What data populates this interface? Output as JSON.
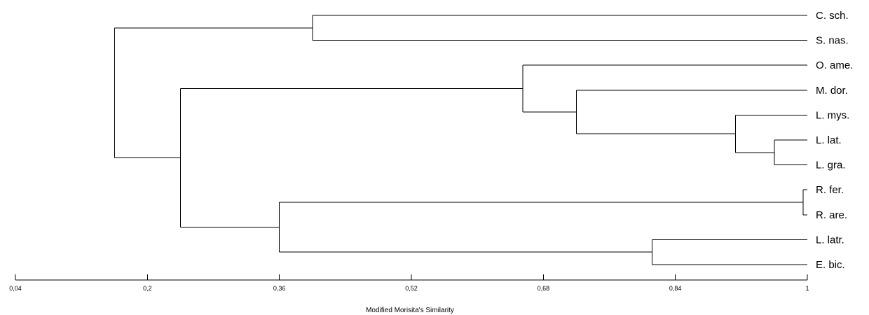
{
  "chart_data": {
    "type": "dendrogram",
    "orientation": "horizontal",
    "xlabel": "Modified Morisita's Similarity",
    "xlim": [
      0.04,
      1
    ],
    "ticks": [
      {
        "value": 0.04,
        "label": "0,04"
      },
      {
        "value": 0.2,
        "label": "0,2"
      },
      {
        "value": 0.36,
        "label": "0,36"
      },
      {
        "value": 0.52,
        "label": "0,52"
      },
      {
        "value": 0.68,
        "label": "0,68"
      },
      {
        "value": 0.84,
        "label": "0,84"
      },
      {
        "value": 1.0,
        "label": "1"
      }
    ],
    "leaves": [
      "C. sch.",
      "S. nas.",
      "O. ame.",
      "M. dor.",
      "L. mys.",
      "L. lat.",
      "L. gra.",
      "R. fer.",
      "R. are.",
      "L. latr.",
      "E. bic."
    ],
    "merges": [
      {
        "id": "n1",
        "children": [
          "R. fer.",
          "R. are."
        ],
        "similarity": 0.995
      },
      {
        "id": "n2",
        "children": [
          "L. lat.",
          "L. gra."
        ],
        "similarity": 0.96
      },
      {
        "id": "n3",
        "children": [
          "L. mys.",
          "n2"
        ],
        "similarity": 0.913
      },
      {
        "id": "n4",
        "children": [
          "L. latr.",
          "E. bic."
        ],
        "similarity": 0.812
      },
      {
        "id": "n5",
        "children": [
          "M. dor.",
          "n3"
        ],
        "similarity": 0.72
      },
      {
        "id": "n6",
        "children": [
          "O. ame.",
          "n5"
        ],
        "similarity": 0.655
      },
      {
        "id": "n7",
        "children": [
          "C. sch.",
          "S. nas."
        ],
        "similarity": 0.4
      },
      {
        "id": "n8",
        "children": [
          "n1",
          "n4"
        ],
        "similarity": 0.36
      },
      {
        "id": "n9",
        "children": [
          "n6",
          "n8"
        ],
        "similarity": 0.24
      },
      {
        "id": "n10",
        "children": [
          "n7",
          "n9"
        ],
        "similarity": 0.16
      }
    ]
  }
}
